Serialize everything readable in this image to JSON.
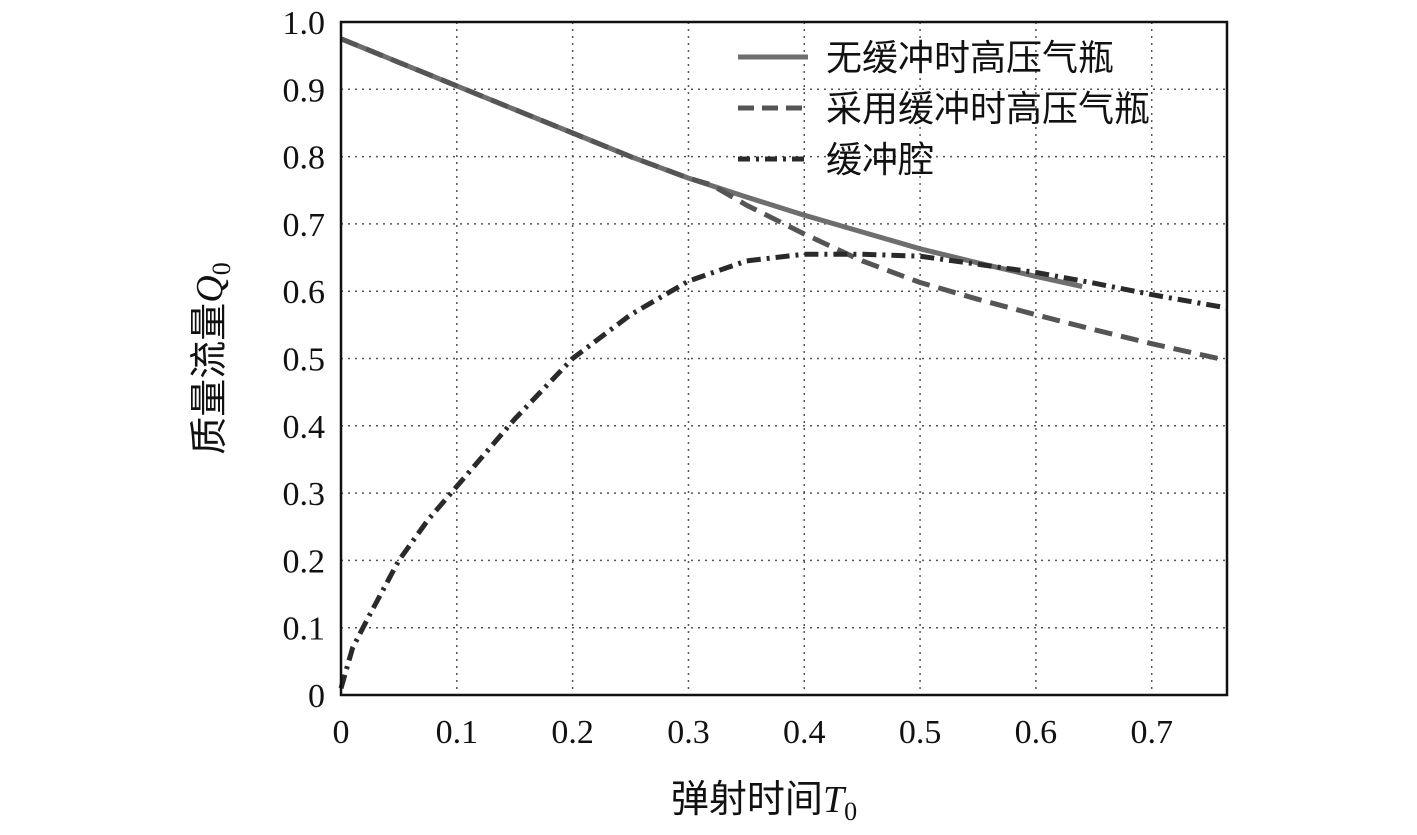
{
  "chart_data": {
    "type": "line",
    "xlabel": "弹射时间",
    "xlabel_var": "T",
    "xlabel_sub": "0",
    "ylabel": "质量流量",
    "ylabel_var": "Q",
    "ylabel_sub": "0",
    "xlim": [
      0,
      0.765
    ],
    "ylim": [
      0,
      1.0
    ],
    "xticks": [
      "0",
      "0.1",
      "0.2",
      "0.3",
      "0.4",
      "0.5",
      "0.6",
      "0.7"
    ],
    "yticks": [
      "0",
      "0.1",
      "0.2",
      "0.3",
      "0.4",
      "0.5",
      "0.6",
      "0.7",
      "0.8",
      "0.9",
      "1.0"
    ],
    "grid": true,
    "legend_position": "top-right",
    "colors": {
      "solid": "#6e6e6e",
      "dashed": "#555555",
      "dashdot": "#2a2a2a"
    },
    "series": [
      {
        "name": "无缓冲时高压气瓶",
        "style": "solid",
        "x": [
          0,
          0.05,
          0.1,
          0.15,
          0.2,
          0.25,
          0.3,
          0.35,
          0.4,
          0.45,
          0.5,
          0.55,
          0.6,
          0.64
        ],
        "y": [
          0.975,
          0.94,
          0.905,
          0.87,
          0.835,
          0.8,
          0.768,
          0.74,
          0.713,
          0.688,
          0.663,
          0.642,
          0.622,
          0.607
        ]
      },
      {
        "name": "采用缓冲时高压气瓶",
        "style": "dashed",
        "x": [
          0,
          0.05,
          0.1,
          0.15,
          0.2,
          0.25,
          0.3,
          0.32,
          0.35,
          0.4,
          0.45,
          0.5,
          0.55,
          0.6,
          0.65,
          0.7,
          0.765
        ],
        "y": [
          0.975,
          0.94,
          0.905,
          0.87,
          0.835,
          0.8,
          0.768,
          0.758,
          0.728,
          0.685,
          0.645,
          0.613,
          0.588,
          0.565,
          0.543,
          0.522,
          0.497
        ]
      },
      {
        "name": "缓冲腔",
        "style": "dashdot",
        "x": [
          0,
          0.01,
          0.025,
          0.05,
          0.075,
          0.1,
          0.15,
          0.2,
          0.25,
          0.3,
          0.35,
          0.4,
          0.45,
          0.5,
          0.55,
          0.6,
          0.65,
          0.7,
          0.765
        ],
        "y": [
          0.01,
          0.07,
          0.12,
          0.2,
          0.26,
          0.31,
          0.41,
          0.5,
          0.565,
          0.615,
          0.645,
          0.655,
          0.655,
          0.652,
          0.64,
          0.628,
          0.612,
          0.595,
          0.575
        ]
      }
    ]
  }
}
